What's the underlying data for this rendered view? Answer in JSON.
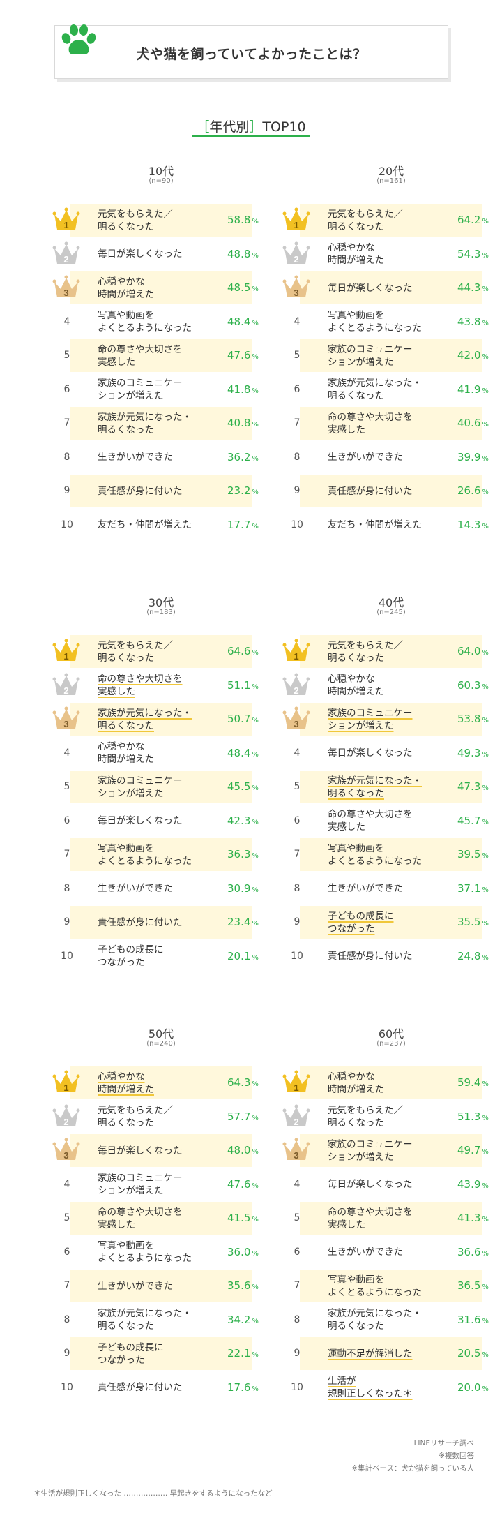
{
  "header": {
    "title": "犬や猫を飼っていてよかったことは？",
    "subtitle_prefix": "［",
    "subtitle_main": "年代別",
    "subtitle_suffix": "］",
    "subtitle_tail": "TOP10"
  },
  "colors": {
    "accent_green": "#2db04b",
    "highlight_bg": "#fff8dc",
    "gold": "#f2c022",
    "silver": "#c9c9c9",
    "bronze": "#e8c28a"
  },
  "chart_data": [
    {
      "type": "table",
      "age": "10代",
      "n": "(n=90)",
      "rows": [
        {
          "rank": "1",
          "lines": [
            "元気をもらえた／",
            "明るくなった"
          ],
          "value": "58.8",
          "hl": true
        },
        {
          "rank": "2",
          "lines": [
            "毎日が楽しくなった"
          ],
          "value": "48.8",
          "hl": false
        },
        {
          "rank": "3",
          "lines": [
            "心穏やかな",
            "時間が増えた"
          ],
          "value": "48.5",
          "hl": true
        },
        {
          "rank": "4",
          "lines": [
            "写真や動画を",
            "よくとるようになった"
          ],
          "value": "48.4",
          "hl": false
        },
        {
          "rank": "5",
          "lines": [
            "命の尊さや大切さを",
            "実感した"
          ],
          "value": "47.6",
          "hl": true
        },
        {
          "rank": "6",
          "lines": [
            "家族のコミュニケー",
            "ションが増えた"
          ],
          "value": "41.8",
          "hl": false
        },
        {
          "rank": "7",
          "lines": [
            "家族が元気になった・",
            "明るくなった"
          ],
          "value": "40.8",
          "hl": true
        },
        {
          "rank": "8",
          "lines": [
            "生きがいができた"
          ],
          "value": "36.2",
          "hl": false
        },
        {
          "rank": "9",
          "lines": [
            "責任感が身に付いた"
          ],
          "value": "23.2",
          "hl": true
        },
        {
          "rank": "10",
          "lines": [
            "友だち・仲間が増えた"
          ],
          "value": "17.7",
          "hl": false
        }
      ]
    },
    {
      "type": "table",
      "age": "20代",
      "n": "(n=161)",
      "rows": [
        {
          "rank": "1",
          "lines": [
            "元気をもらえた／",
            "明るくなった"
          ],
          "value": "64.2",
          "hl": true
        },
        {
          "rank": "2",
          "lines": [
            "心穏やかな",
            "時間が増えた"
          ],
          "value": "54.3",
          "hl": false
        },
        {
          "rank": "3",
          "lines": [
            "毎日が楽しくなった"
          ],
          "value": "44.3",
          "hl": true
        },
        {
          "rank": "4",
          "lines": [
            "写真や動画を",
            "よくとるようになった"
          ],
          "value": "43.8",
          "hl": false
        },
        {
          "rank": "5",
          "lines": [
            "家族のコミュニケー",
            "ションが増えた"
          ],
          "value": "42.0",
          "hl": true
        },
        {
          "rank": "6",
          "lines": [
            "家族が元気になった・",
            "明るくなった"
          ],
          "value": "41.9",
          "hl": false
        },
        {
          "rank": "7",
          "lines": [
            "命の尊さや大切さを",
            "実感した"
          ],
          "value": "40.6",
          "hl": true
        },
        {
          "rank": "8",
          "lines": [
            "生きがいができた"
          ],
          "value": "39.9",
          "hl": false
        },
        {
          "rank": "9",
          "lines": [
            "責任感が身に付いた"
          ],
          "value": "26.6",
          "hl": true
        },
        {
          "rank": "10",
          "lines": [
            "友だち・仲間が増えた"
          ],
          "value": "14.3",
          "hl": false
        }
      ]
    },
    {
      "type": "table",
      "age": "30代",
      "n": "(n=183)",
      "rows": [
        {
          "rank": "1",
          "lines": [
            "元気をもらえた／",
            "明るくなった"
          ],
          "value": "64.6",
          "hl": true
        },
        {
          "rank": "2",
          "lines": [
            "命の尊さや大切さを",
            "実感した"
          ],
          "value": "51.1",
          "hl": false,
          "ul": true
        },
        {
          "rank": "3",
          "lines": [
            "家族が元気になった・",
            "明るくなった"
          ],
          "value": "50.7",
          "hl": true,
          "ul": true
        },
        {
          "rank": "4",
          "lines": [
            "心穏やかな",
            "時間が増えた"
          ],
          "value": "48.4",
          "hl": false
        },
        {
          "rank": "5",
          "lines": [
            "家族のコミュニケー",
            "ションが増えた"
          ],
          "value": "45.5",
          "hl": true
        },
        {
          "rank": "6",
          "lines": [
            "毎日が楽しくなった"
          ],
          "value": "42.3",
          "hl": false
        },
        {
          "rank": "7",
          "lines": [
            "写真や動画を",
            "よくとるようになった"
          ],
          "value": "36.3",
          "hl": true
        },
        {
          "rank": "8",
          "lines": [
            "生きがいができた"
          ],
          "value": "30.9",
          "hl": false
        },
        {
          "rank": "9",
          "lines": [
            "責任感が身に付いた"
          ],
          "value": "23.4",
          "hl": true
        },
        {
          "rank": "10",
          "lines": [
            "子どもの成長に",
            "つながった"
          ],
          "value": "20.1",
          "hl": false
        }
      ]
    },
    {
      "type": "table",
      "age": "40代",
      "n": "(n=245)",
      "rows": [
        {
          "rank": "1",
          "lines": [
            "元気をもらえた／",
            "明るくなった"
          ],
          "value": "64.0",
          "hl": true
        },
        {
          "rank": "2",
          "lines": [
            "心穏やかな",
            "時間が増えた"
          ],
          "value": "60.3",
          "hl": false
        },
        {
          "rank": "3",
          "lines": [
            "家族のコミュニケー",
            "ションが増えた"
          ],
          "value": "53.8",
          "hl": true,
          "ul": true
        },
        {
          "rank": "4",
          "lines": [
            "毎日が楽しくなった"
          ],
          "value": "49.3",
          "hl": false
        },
        {
          "rank": "5",
          "lines": [
            "家族が元気になった・",
            "明るくなった"
          ],
          "value": "47.3",
          "hl": true,
          "ul": true
        },
        {
          "rank": "6",
          "lines": [
            "命の尊さや大切さを",
            "実感した"
          ],
          "value": "45.7",
          "hl": false
        },
        {
          "rank": "7",
          "lines": [
            "写真や動画を",
            "よくとるようになった"
          ],
          "value": "39.5",
          "hl": true
        },
        {
          "rank": "8",
          "lines": [
            "生きがいができた"
          ],
          "value": "37.1",
          "hl": false
        },
        {
          "rank": "9",
          "lines": [
            "子どもの成長に",
            "つながった"
          ],
          "value": "35.5",
          "hl": true,
          "ul": true
        },
        {
          "rank": "10",
          "lines": [
            "責任感が身に付いた"
          ],
          "value": "24.8",
          "hl": false
        }
      ]
    },
    {
      "type": "table",
      "age": "50代",
      "n": "(n=240)",
      "rows": [
        {
          "rank": "1",
          "lines": [
            "心穏やかな",
            "時間が増えた"
          ],
          "value": "64.3",
          "hl": true,
          "ul": true
        },
        {
          "rank": "2",
          "lines": [
            "元気をもらえた／",
            "明るくなった"
          ],
          "value": "57.7",
          "hl": false
        },
        {
          "rank": "3",
          "lines": [
            "毎日が楽しくなった"
          ],
          "value": "48.0",
          "hl": true
        },
        {
          "rank": "4",
          "lines": [
            "家族のコミュニケー",
            "ションが増えた"
          ],
          "value": "47.6",
          "hl": false
        },
        {
          "rank": "5",
          "lines": [
            "命の尊さや大切さを",
            "実感した"
          ],
          "value": "41.5",
          "hl": true
        },
        {
          "rank": "6",
          "lines": [
            "写真や動画を",
            "よくとるようになった"
          ],
          "value": "36.0",
          "hl": false
        },
        {
          "rank": "7",
          "lines": [
            "生きがいができた"
          ],
          "value": "35.6",
          "hl": true
        },
        {
          "rank": "8",
          "lines": [
            "家族が元気になった・",
            "明るくなった"
          ],
          "value": "34.2",
          "hl": false
        },
        {
          "rank": "9",
          "lines": [
            "子どもの成長に",
            "つながった"
          ],
          "value": "22.1",
          "hl": true
        },
        {
          "rank": "10",
          "lines": [
            "責任感が身に付いた"
          ],
          "value": "17.6",
          "hl": false
        }
      ]
    },
    {
      "type": "table",
      "age": "60代",
      "n": "(n=237)",
      "rows": [
        {
          "rank": "1",
          "lines": [
            "心穏やかな",
            "時間が増えた"
          ],
          "value": "59.4",
          "hl": true
        },
        {
          "rank": "2",
          "lines": [
            "元気をもらえた／",
            "明るくなった"
          ],
          "value": "51.3",
          "hl": false
        },
        {
          "rank": "3",
          "lines": [
            "家族のコミュニケー",
            "ションが増えた"
          ],
          "value": "49.7",
          "hl": true
        },
        {
          "rank": "4",
          "lines": [
            "毎日が楽しくなった"
          ],
          "value": "43.9",
          "hl": false
        },
        {
          "rank": "5",
          "lines": [
            "命の尊さや大切さを",
            "実感した"
          ],
          "value": "41.3",
          "hl": true
        },
        {
          "rank": "6",
          "lines": [
            "生きがいができた"
          ],
          "value": "36.6",
          "hl": false
        },
        {
          "rank": "7",
          "lines": [
            "写真や動画を",
            "よくとるようになった"
          ],
          "value": "36.5",
          "hl": true
        },
        {
          "rank": "8",
          "lines": [
            "家族が元気になった・",
            "明るくなった"
          ],
          "value": "31.6",
          "hl": false
        },
        {
          "rank": "9",
          "lines": [
            "運動不足が解消した"
          ],
          "value": "20.5",
          "hl": true,
          "ul": true
        },
        {
          "rank": "10",
          "lines": [
            "生活が",
            "規則正しくなった＊"
          ],
          "value": "20.0",
          "hl": false,
          "ul": true
        }
      ]
    }
  ],
  "percent_unit": "%",
  "credits": [
    "LINEリサーチ調べ",
    "※複数回答",
    "※集計ベース：犬か猫を飼っている人"
  ],
  "footnote": "＊生活が規則正しくなった ……………… 早起きをするようになったなど"
}
